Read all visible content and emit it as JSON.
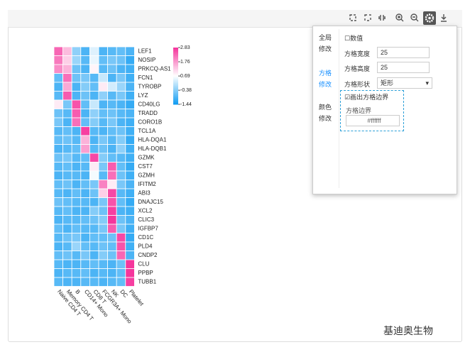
{
  "chart_data": {
    "type": "heatmap",
    "rows": [
      "LEF1",
      "NOSIP",
      "PRKCQ-AS1",
      "FCN1",
      "TYROBP",
      "LYZ",
      "CD40LG",
      "TRADD",
      "CORO1B",
      "TCL1A",
      "HLA-DQA1",
      "HLA-DQB1",
      "GZMK",
      "CST7",
      "GZMH",
      "IFITM2",
      "ABI3",
      "DNAJC15",
      "XCL2",
      "CLIC3",
      "IGFBP7",
      "CD1C",
      "PLD4",
      "CNDP2",
      "CLU",
      "PPBP",
      "TUBB1"
    ],
    "columns": [
      "Naive CD4 T",
      "Memory CD4 T",
      "B",
      "CD14+ Mono",
      "CD8 T",
      "FCGR3A+ Mono",
      "NK",
      "DC",
      "Platelet"
    ],
    "values": [
      [
        2.3,
        1.4,
        -0.3,
        -0.9,
        0.4,
        -0.9,
        -0.8,
        -0.7,
        -0.9
      ],
      [
        2.1,
        1.2,
        -0.2,
        -0.8,
        0.5,
        -0.7,
        -0.5,
        -0.6,
        -1.1
      ],
      [
        1.9,
        1.5,
        -0.6,
        -0.9,
        0.8,
        -0.8,
        -0.6,
        -0.9,
        -1.0
      ],
      [
        -0.7,
        2.2,
        -0.6,
        -0.5,
        -0.8,
        0.2,
        -0.9,
        -0.5,
        -1.0
      ],
      [
        -0.9,
        1.6,
        -0.9,
        -0.4,
        -0.7,
        0.9,
        0.3,
        -0.2,
        -0.9
      ],
      [
        -0.8,
        2.4,
        -0.9,
        -0.6,
        -0.9,
        -0.3,
        -0.8,
        -0.5,
        -1.0
      ],
      [
        0.9,
        -0.5,
        2.5,
        -0.7,
        0.2,
        -0.9,
        -0.8,
        -0.9,
        -1.1
      ],
      [
        -0.6,
        -0.8,
        2.4,
        -0.9,
        -0.3,
        -0.7,
        -0.6,
        -0.8,
        -0.9
      ],
      [
        -0.5,
        -0.9,
        2.2,
        -0.7,
        -0.4,
        -0.8,
        -0.5,
        -0.9,
        -1.0
      ],
      [
        -0.8,
        -0.7,
        -0.9,
        2.7,
        -0.8,
        -0.9,
        -0.7,
        -0.6,
        -1.0
      ],
      [
        -0.7,
        -0.6,
        -0.8,
        1.5,
        -0.9,
        -0.5,
        -0.8,
        -0.4,
        -1.1
      ],
      [
        -0.9,
        -0.8,
        -0.7,
        1.7,
        -0.8,
        -0.6,
        -0.9,
        -0.3,
        -1.0
      ],
      [
        -0.6,
        -0.5,
        -0.8,
        -0.7,
        2.6,
        -0.4,
        -0.7,
        -0.8,
        -1.0
      ],
      [
        -0.8,
        -0.7,
        -0.9,
        -0.8,
        0.9,
        -0.5,
        2.4,
        -0.7,
        -1.1
      ],
      [
        -0.9,
        -0.8,
        -0.8,
        -0.9,
        0.6,
        -0.8,
        2.2,
        -0.6,
        -1.0
      ],
      [
        -0.7,
        -0.6,
        -0.9,
        -0.7,
        -0.5,
        2.0,
        0.9,
        -0.5,
        -0.9
      ],
      [
        -0.8,
        -0.9,
        -0.7,
        -0.9,
        -0.6,
        1.2,
        2.6,
        -0.8,
        -1.0
      ],
      [
        -0.6,
        -0.7,
        -0.8,
        -0.8,
        -0.9,
        -0.5,
        2.5,
        -0.7,
        -1.1
      ],
      [
        -0.8,
        -0.7,
        -0.9,
        -0.9,
        -0.4,
        -0.6,
        2.7,
        -0.9,
        -1.0
      ],
      [
        -0.9,
        -0.8,
        -0.8,
        -0.7,
        -0.6,
        -0.4,
        2.8,
        -0.6,
        -0.9
      ],
      [
        -0.7,
        -0.9,
        -0.7,
        -0.8,
        -0.8,
        -0.5,
        2.4,
        -0.5,
        -1.0
      ],
      [
        -0.8,
        -0.6,
        -0.5,
        -0.9,
        -0.7,
        -0.7,
        -0.6,
        2.6,
        -1.1
      ],
      [
        -0.9,
        -0.8,
        -0.2,
        -0.7,
        -0.8,
        -0.6,
        -0.7,
        2.5,
        -1.0
      ],
      [
        -0.7,
        -0.6,
        -0.8,
        -0.5,
        -0.9,
        -0.4,
        -0.6,
        2.3,
        -0.9
      ],
      [
        -0.8,
        -0.9,
        -0.9,
        -0.8,
        -0.7,
        -0.8,
        -0.9,
        -0.6,
        2.8
      ],
      [
        -0.9,
        -0.8,
        -0.8,
        -0.7,
        -0.9,
        -0.8,
        -0.9,
        -0.7,
        2.8
      ],
      [
        -0.8,
        -0.9,
        -0.9,
        -0.8,
        -0.8,
        -0.9,
        -0.8,
        -0.7,
        2.7
      ]
    ],
    "colorbar_ticks": [
      2.83,
      1.76,
      0.69,
      -0.38,
      -1.44
    ],
    "colors": {
      "low": "#0f9bf2",
      "mid": "#ffffff",
      "high": "#f5339b"
    },
    "cell_border": "#ffffff"
  },
  "panel": {
    "global_title": "全局修改",
    "show_value": "数值",
    "width_label": "方格宽度",
    "width_value": "25",
    "height_label": "方格高度",
    "height_value": "25",
    "shape_label": "方格形状",
    "shape_value": "矩形",
    "cell_title": "方格修改",
    "draw_border": "画出方格边界",
    "color_title": "颜色修改",
    "border_label": "方格边界",
    "border_value": "#ffffff"
  },
  "watermark": "基迪奥生物"
}
